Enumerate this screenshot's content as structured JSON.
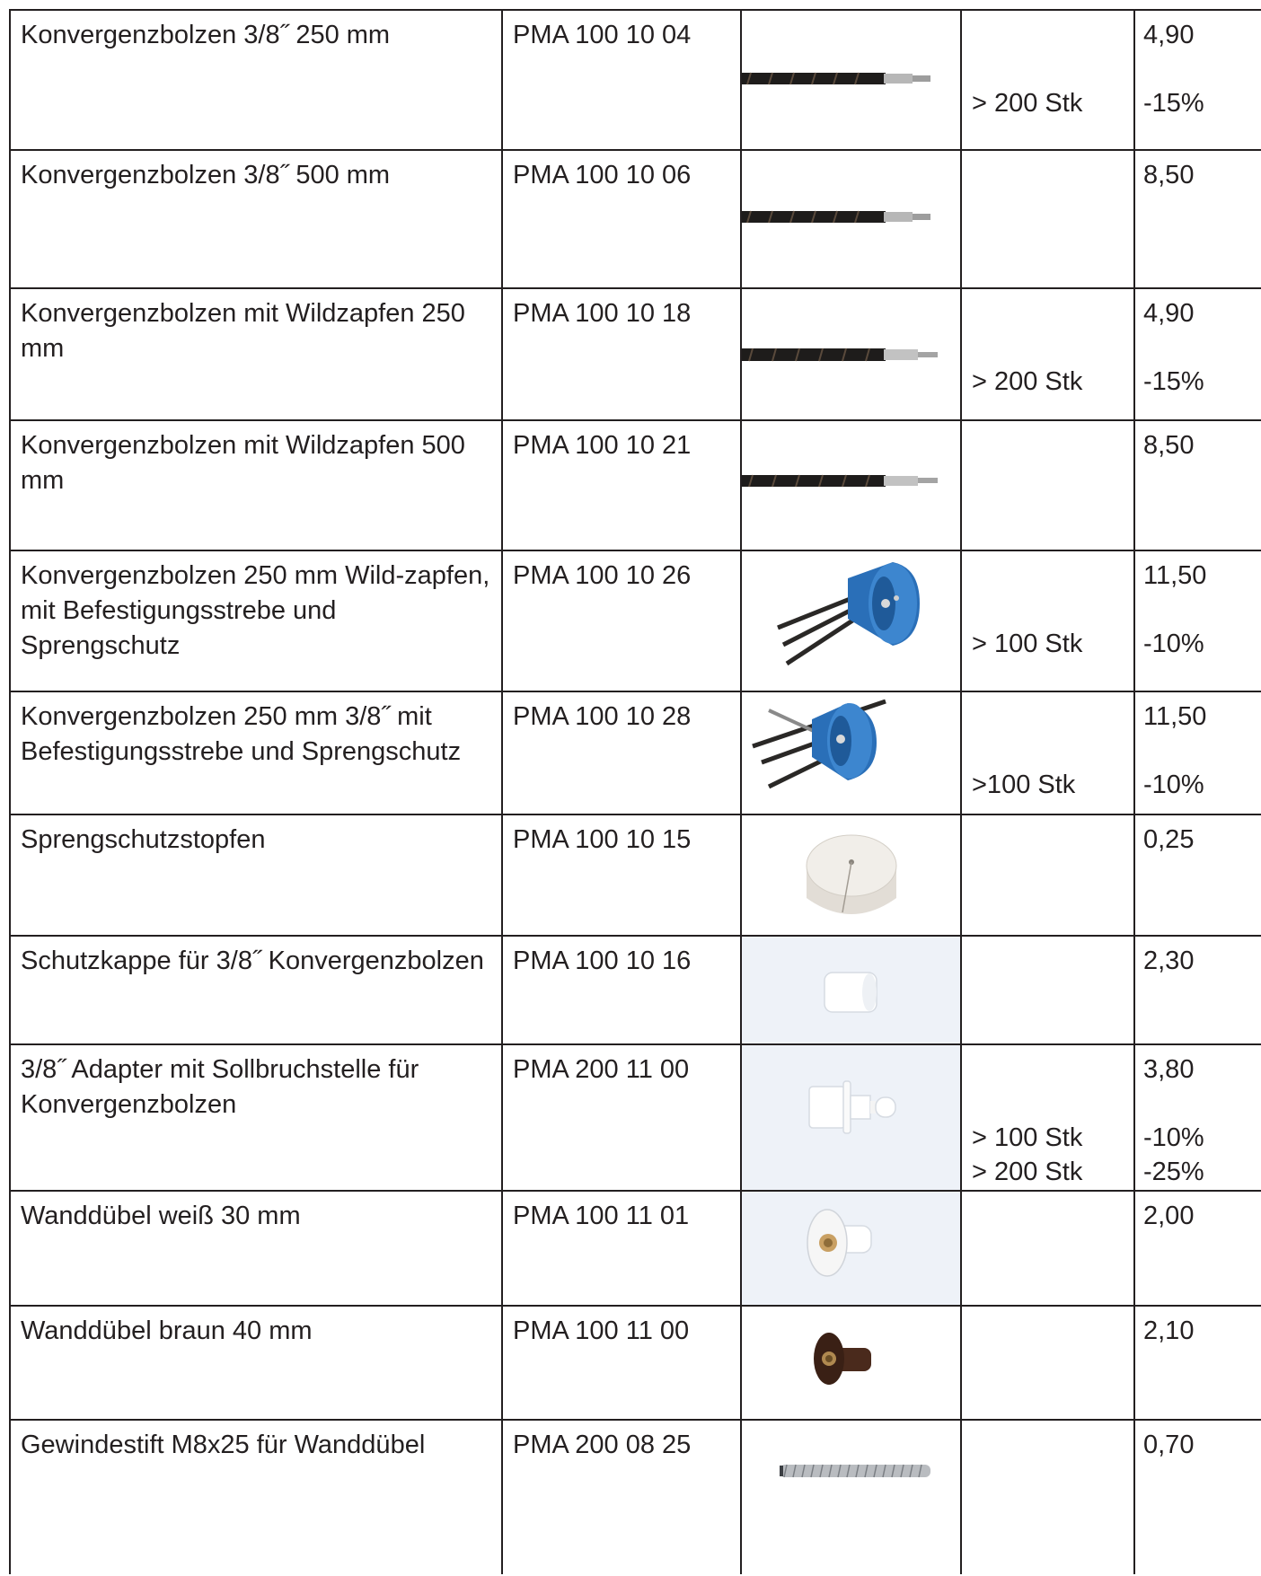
{
  "products": [
    {
      "name": "Konvergenzbolzen 3/8˝ 250 mm",
      "code": "PMA 100 10 04",
      "image": "rebar-bolt-threaded-icon",
      "quantity": "> 200 Stk",
      "price": "4,90",
      "discount": "-15%"
    },
    {
      "name": "Konvergenzbolzen 3/8˝ 500 mm",
      "code": "PMA 100 10 06",
      "image": "rebar-bolt-threaded-icon",
      "quantity": "",
      "price": "8,50",
      "discount": ""
    },
    {
      "name": "Konvergenzbolzen mit Wildzapfen 250 mm",
      "code": "PMA 100 10 18",
      "image": "rebar-bolt-wildzapfen-icon",
      "quantity": "> 200 Stk",
      "price": "4,90",
      "discount": "-15%"
    },
    {
      "name": "Konvergenzbolzen mit Wildzapfen 500 mm",
      "code": "PMA 100 10 21",
      "image": "rebar-bolt-wildzapfen-icon",
      "quantity": "",
      "price": "8,50",
      "discount": ""
    },
    {
      "name": "Konvergenzbolzen 250 mm Wild-zapfen, mit Befestigungsstrebe und Sprengschutz",
      "code": "PMA 100 10 26",
      "image": "blue-blast-shield-icon",
      "quantity": "> 100 Stk",
      "price": "11,50",
      "discount": "-10%"
    },
    {
      "name": "Konvergenzbolzen 250 mm 3/8˝ mit Befestigungsstrebe und Sprengschutz",
      "code": "PMA 100 10 28",
      "image": "blue-blast-shield-icon",
      "quantity": ">100 Stk",
      "price": "11,50",
      "discount": "-10%"
    },
    {
      "name": "Sprengschutzstopfen",
      "code": "PMA 100 10 15",
      "image": "foam-plug-icon",
      "quantity": "",
      "price": "0,25",
      "discount": ""
    },
    {
      "name": "Schutzkappe für 3/8˝ Konvergenzbolzen",
      "code": "PMA 100 10 16",
      "image": "protective-cap-icon",
      "quantity": "",
      "price": "2,30",
      "discount": ""
    },
    {
      "name": "3/8˝ Adapter mit Sollbruchstelle für Konvergenzbolzen",
      "code": "PMA 200 11 00",
      "image": "adapter-icon",
      "quantity": "> 100 Stk\n> 200 Stk",
      "price": "3,80",
      "discount": "-10%\n-25%"
    },
    {
      "name": "Wanddübel weiß 30 mm",
      "code": "PMA 100 11 01",
      "image": "white-wall-anchor-icon",
      "quantity": "",
      "price": "2,00",
      "discount": ""
    },
    {
      "name": "Wanddübel braun 40 mm",
      "code": "PMA 100 11 00",
      "image": "brown-wall-anchor-icon",
      "quantity": "",
      "price": "2,10",
      "discount": ""
    },
    {
      "name": "Gewindestift M8x25 für Wanddübel",
      "code": "PMA 200 08 25",
      "image": "threaded-pin-icon",
      "quantity": "",
      "price": "0,70",
      "discount": ""
    }
  ]
}
